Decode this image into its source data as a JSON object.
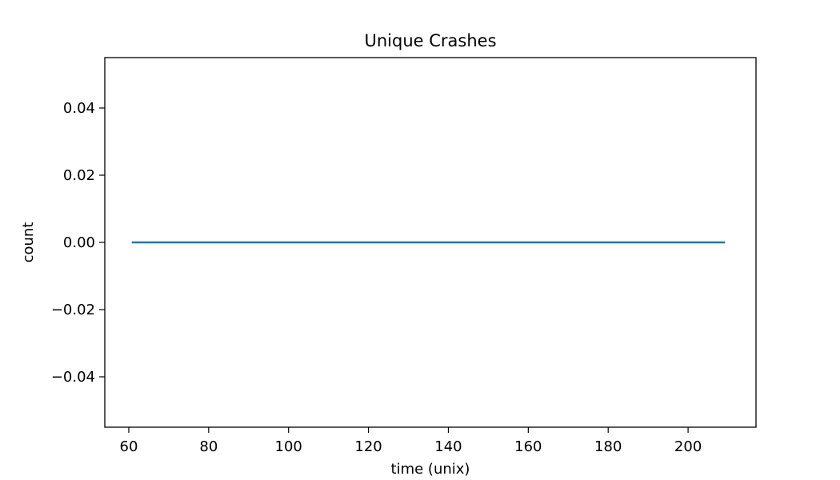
{
  "chart_data": {
    "type": "line",
    "title": "Unique Crashes",
    "xlabel": "time (unix)",
    "ylabel": "count",
    "xlim": [
      54,
      217
    ],
    "ylim": [
      -0.055,
      0.055
    ],
    "xticks": [
      60,
      80,
      100,
      120,
      140,
      160,
      180,
      200
    ],
    "xtick_labels": [
      "60",
      "80",
      "100",
      "120",
      "140",
      "160",
      "180",
      "200"
    ],
    "yticks": [
      -0.04,
      -0.02,
      0.0,
      0.02,
      0.04
    ],
    "ytick_labels": [
      "−0.04",
      "−0.02",
      "0.00",
      "0.02",
      "0.04"
    ],
    "grid": false,
    "series": [
      {
        "color": "#1f77b4",
        "x": [
          61,
          209
        ],
        "y": [
          0,
          0
        ]
      }
    ]
  }
}
